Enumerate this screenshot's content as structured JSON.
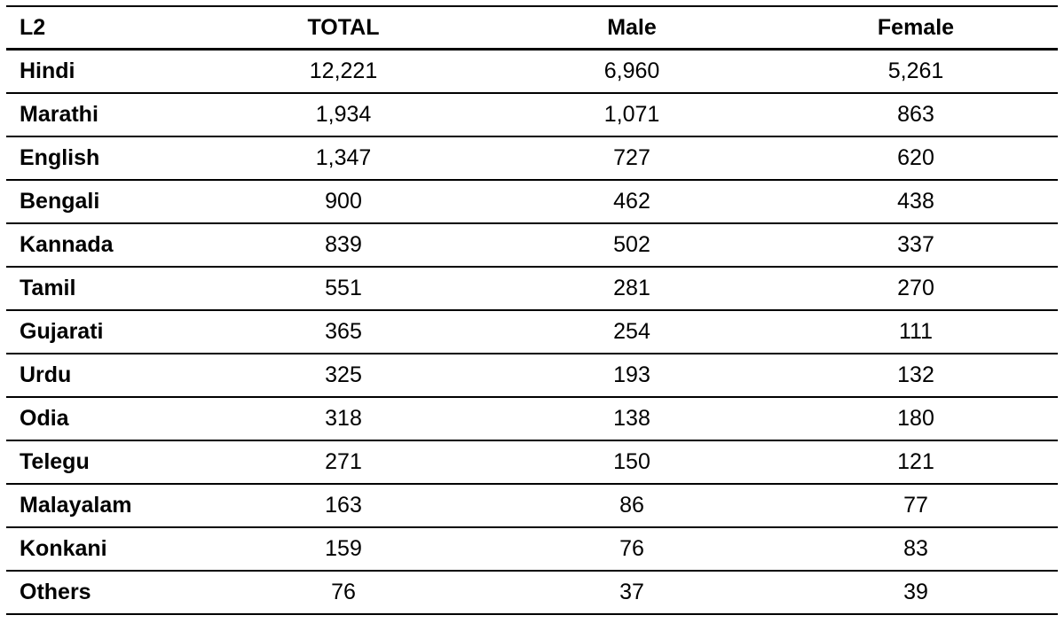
{
  "page": {
    "background_color": "#ffffff",
    "text_color": "#000000",
    "rule_color": "#000000"
  },
  "table": {
    "columns": [
      "L2",
      "TOTAL",
      "Male",
      "Female"
    ],
    "rows": [
      {
        "l2": "Hindi",
        "total": "12,221",
        "male": "6,960",
        "female": "5,261"
      },
      {
        "l2": "Marathi",
        "total": "1,934",
        "male": "1,071",
        "female": "863"
      },
      {
        "l2": "English",
        "total": "1,347",
        "male": "727",
        "female": "620"
      },
      {
        "l2": "Bengali",
        "total": "900",
        "male": "462",
        "female": "438"
      },
      {
        "l2": "Kannada",
        "total": "839",
        "male": "502",
        "female": "337"
      },
      {
        "l2": "Tamil",
        "total": "551",
        "male": "281",
        "female": "270"
      },
      {
        "l2": "Gujarati",
        "total": "365",
        "male": "254",
        "female": "111"
      },
      {
        "l2": "Urdu",
        "total": "325",
        "male": "193",
        "female": "132"
      },
      {
        "l2": "Odia",
        "total": "318",
        "male": "138",
        "female": "180"
      },
      {
        "l2": "Telegu",
        "total": "271",
        "male": "150",
        "female": "121"
      },
      {
        "l2": "Malayalam",
        "total": "163",
        "male": "86",
        "female": "77"
      },
      {
        "l2": "Konkani",
        "total": "159",
        "male": "76",
        "female": "83"
      },
      {
        "l2": "Others",
        "total": "76",
        "male": "37",
        "female": "39"
      }
    ]
  },
  "chart_data": {
    "type": "table",
    "columns": [
      "L2",
      "TOTAL",
      "Male",
      "Female"
    ],
    "rows": [
      [
        "Hindi",
        12221,
        6960,
        5261
      ],
      [
        "Marathi",
        1934,
        1071,
        863
      ],
      [
        "English",
        1347,
        727,
        620
      ],
      [
        "Bengali",
        900,
        462,
        438
      ],
      [
        "Kannada",
        839,
        502,
        337
      ],
      [
        "Tamil",
        551,
        281,
        270
      ],
      [
        "Gujarati",
        365,
        254,
        111
      ],
      [
        "Urdu",
        325,
        193,
        132
      ],
      [
        "Odia",
        318,
        138,
        180
      ],
      [
        "Telegu",
        271,
        150,
        121
      ],
      [
        "Malayalam",
        163,
        86,
        77
      ],
      [
        "Konkani",
        159,
        76,
        83
      ],
      [
        "Others",
        76,
        37,
        39
      ]
    ],
    "notes": "Horizontal-rules-only table; header row and L2 column bold; numeric columns center-aligned; L2 column left-aligned"
  }
}
